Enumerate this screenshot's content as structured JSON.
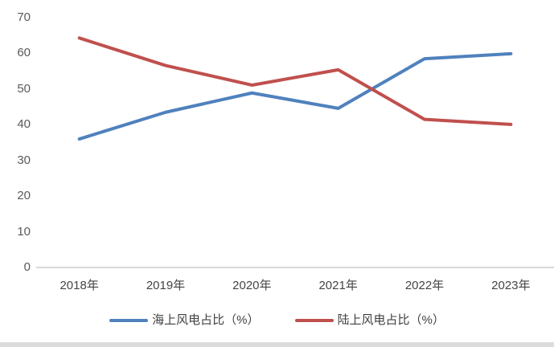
{
  "chart_data": {
    "type": "line",
    "title": "",
    "xlabel": "",
    "ylabel": "",
    "categories": [
      "2018年",
      "2019年",
      "2020年",
      "2021年",
      "2022年",
      "2023年"
    ],
    "series": [
      {
        "name": "海上风电占比（%）",
        "color": "#4F81BD",
        "values": [
          36.0,
          43.5,
          48.9,
          44.6,
          58.5,
          59.9
        ]
      },
      {
        "name": "陆上风电占比（%）",
        "color": "#C0504D",
        "values": [
          64.3,
          56.6,
          51.1,
          55.4,
          41.5,
          40.1
        ]
      }
    ],
    "ylim": [
      0,
      70
    ],
    "ytick_step": 10,
    "ytick_labels": [
      "0",
      "10",
      "20",
      "30",
      "40",
      "50",
      "60",
      "70"
    ],
    "grid": false,
    "legend_position": "bottom",
    "axis_line_color": "#d9d9d9",
    "tick_label_color": "#595959",
    "category_label_color": "#444444",
    "legend_label_color": "#404040"
  }
}
